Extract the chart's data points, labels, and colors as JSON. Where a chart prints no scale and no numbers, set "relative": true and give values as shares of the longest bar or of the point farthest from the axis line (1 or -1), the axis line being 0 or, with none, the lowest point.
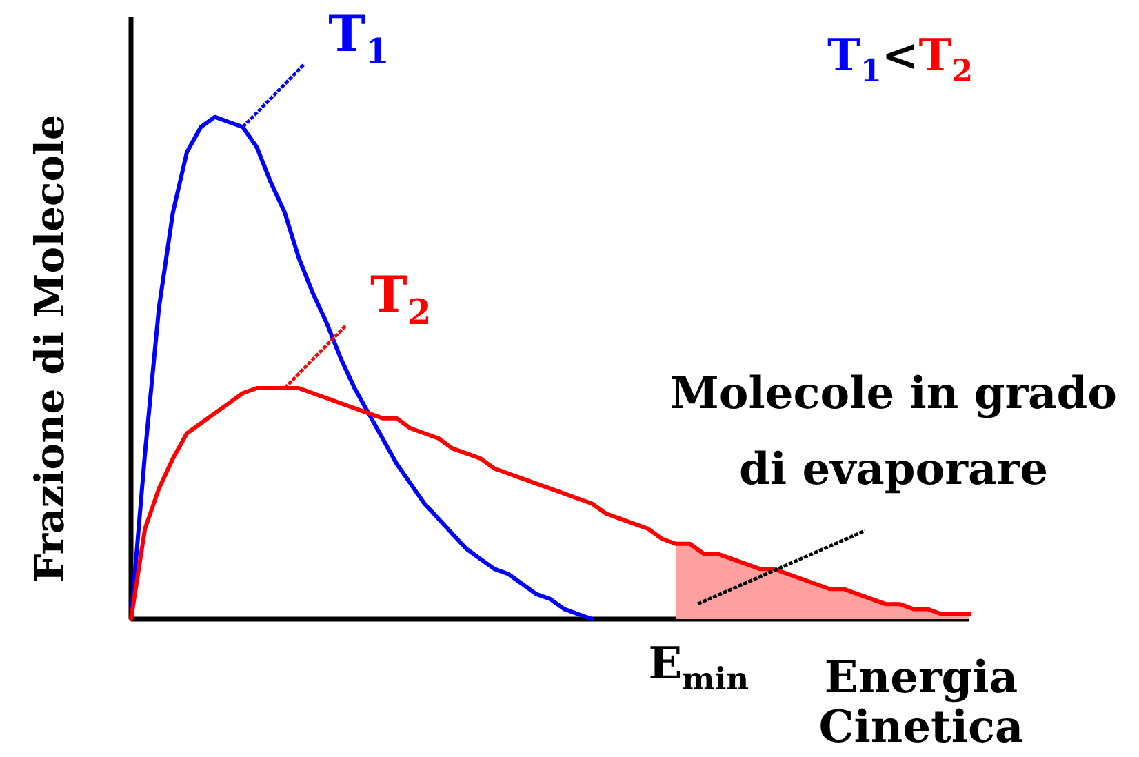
{
  "chart_data": {
    "type": "line",
    "relative": true,
    "marker": "none",
    "ylabel": "Frazione di Molecole",
    "xlabel": "Energia Cinetica",
    "categories": [
      null,
      null,
      null,
      null,
      null,
      null,
      null,
      null,
      null,
      null,
      null,
      null,
      null,
      null,
      null,
      null,
      null,
      null,
      null,
      null,
      null,
      null,
      null,
      null,
      null,
      null,
      null,
      null,
      null,
      null,
      null,
      null,
      null,
      null,
      null,
      null,
      null,
      null,
      null,
      null,
      null,
      null,
      null,
      null,
      null,
      null,
      null,
      null,
      null,
      null,
      null,
      null,
      null,
      null,
      null,
      null,
      null,
      null,
      null,
      null,
      null
    ],
    "series": [
      {
        "name": "T$_{1}$",
        "color": "#0000ff",
        "values": [
          0,
          0.33,
          0.62,
          0.81,
          0.93,
          0.98,
          1,
          0.99,
          0.98,
          0.94,
          0.87,
          0.81,
          0.72,
          0.65,
          0.59,
          0.52,
          0.46,
          0.41,
          0.36,
          0.31,
          0.27,
          0.23,
          0.2,
          0.17,
          0.14,
          0.12,
          0.1,
          0.09,
          0.07,
          0.05,
          0.04,
          0.02,
          0.01,
          0,
          null,
          null,
          null,
          null,
          null,
          null,
          null,
          null,
          null,
          null,
          null,
          null,
          null,
          null,
          null,
          null,
          null,
          null,
          null,
          null,
          null,
          null,
          null,
          null,
          null,
          null,
          null
        ]
      },
      {
        "name": "T$_{2}$",
        "color": "#ff0000",
        "values": [
          0,
          0.18,
          0.26,
          0.32,
          0.37,
          0.39,
          0.41,
          0.43,
          0.45,
          0.46,
          0.46,
          0.46,
          0.46,
          0.45,
          0.44,
          0.43,
          0.42,
          0.41,
          0.4,
          0.4,
          0.38,
          0.37,
          0.36,
          0.34,
          0.33,
          0.32,
          0.3,
          0.29,
          0.28,
          0.27,
          0.26,
          0.25,
          0.24,
          0.23,
          0.21,
          0.2,
          0.19,
          0.18,
          0.16,
          0.15,
          0.15,
          0.13,
          0.13,
          0.12,
          0.11,
          0.1,
          0.1,
          0.09,
          0.08,
          0.07,
          0.06,
          0.06,
          0.05,
          0.04,
          0.03,
          0.03,
          0.02,
          0.02,
          0.01,
          0.01,
          0.01
        ]
      },
      {
        "type": "area",
        "color": "#ffa0a0",
        "values": [
          null,
          null,
          null,
          null,
          null,
          null,
          null,
          null,
          null,
          null,
          null,
          null,
          null,
          null,
          null,
          null,
          null,
          null,
          null,
          null,
          null,
          null,
          null,
          null,
          null,
          null,
          null,
          null,
          null,
          null,
          null,
          null,
          null,
          null,
          null,
          null,
          null,
          null,
          null,
          0.15,
          0.15,
          0.13,
          0.13,
          0.12,
          0.11,
          0.1,
          0.1,
          0.09,
          0.08,
          0.07,
          0.06,
          0.06,
          0.05,
          0.04,
          0.03,
          0.03,
          0.02,
          0.02,
          0.01,
          0.01,
          0.01
        ]
      }
    ],
    "annotations": [
      "T$_{1}$<T$_{2}$",
      "Molecole in grado di evaporare",
      "E$_{min}$"
    ]
  }
}
